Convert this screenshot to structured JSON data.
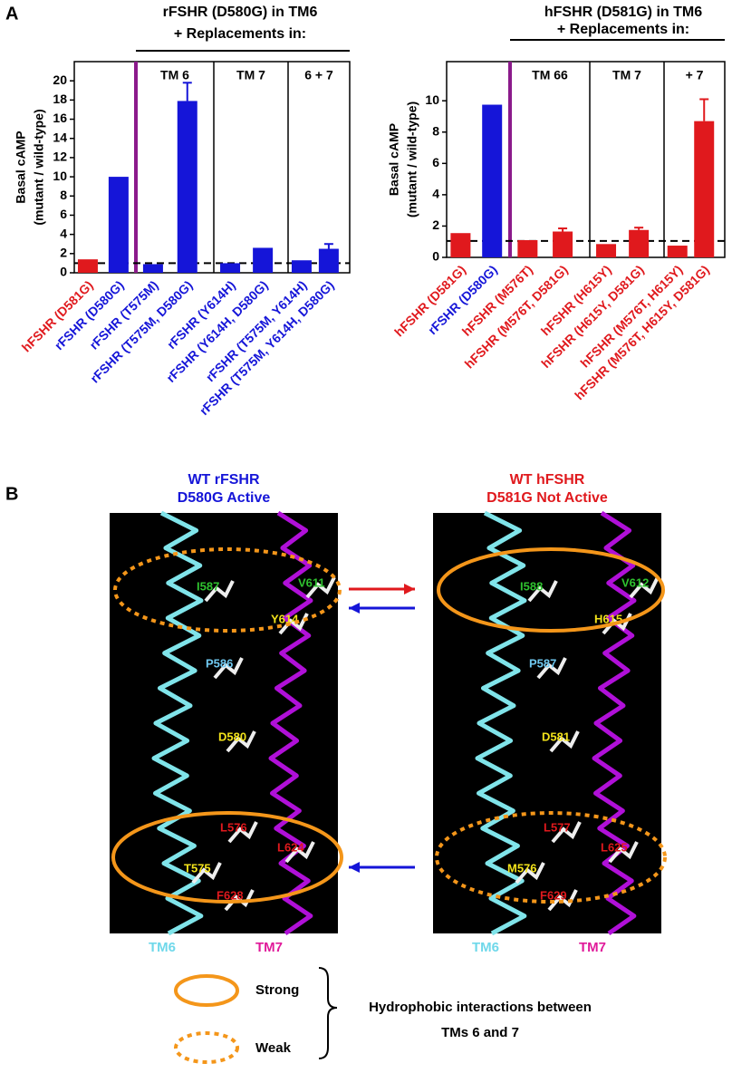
{
  "panel_labels": [
    "A",
    "B"
  ],
  "chart_data": [
    {
      "type": "bar",
      "title": "rFSHR (D580G) in TM6",
      "subtitle": "+ Replacements in:",
      "ylabel": [
        "Basal cAMP",
        "(mutant / wild-type)"
      ],
      "sections": [
        "TM 6",
        "TM 7",
        "6 + 7"
      ],
      "categories": [
        "hFSHR (D581G)",
        "rFSHR (D580G)",
        "rFSHR (T575M)",
        "rFSHR (T575M, D580G)",
        "rFSHR (Y614H)",
        "rFSHR (Y614H, D580G)",
        "rFSHR (T575M, Y614H)",
        "rFSHR (T575M, Y614H, D580G)"
      ],
      "values": [
        1.4,
        10.0,
        0.9,
        17.9,
        1.0,
        2.6,
        1.3,
        2.5
      ],
      "errors": [
        null,
        null,
        null,
        1.9,
        null,
        null,
        null,
        0.5
      ],
      "colors": [
        "#e0191d",
        "#1515d8",
        "#1515d8",
        "#1515d8",
        "#1515d8",
        "#1515d8",
        "#1515d8",
        "#1515d8"
      ],
      "reference_line": 1,
      "ylim": [
        0,
        22
      ],
      "yticks": [
        0,
        2,
        4,
        6,
        8,
        10,
        12,
        14,
        16,
        18,
        20
      ]
    },
    {
      "type": "bar",
      "title": "hFSHR (D581G)  in TM6",
      "subtitle": "+ Replacements in:",
      "ylabel": [
        "Basal cAMP",
        "(mutant / wild-type)"
      ],
      "sections": [
        "TM 66",
        "TM 7",
        "+ 7"
      ],
      "categories": [
        "hFSHR (D581G)",
        "rFSHR (D580G)",
        "hFSHR (M576T)",
        "hFSHR (M576T, D581G)",
        "hFSHR (H615Y)",
        "hFSHR (H615Y, D581G)",
        "hFSHR (M576T, H615Y)",
        "hFSHR (M576T, H615Y, D581G)"
      ],
      "values": [
        1.55,
        9.75,
        1.1,
        1.65,
        0.85,
        1.75,
        0.75,
        8.7
      ],
      "errors": [
        null,
        null,
        null,
        0.2,
        null,
        0.15,
        null,
        1.4
      ],
      "colors": [
        "#e0191d",
        "#1515d8",
        "#e0191d",
        "#e0191d",
        "#e0191d",
        "#e0191d",
        "#e0191d",
        "#e0191d"
      ],
      "reference_line": 1.05,
      "ylim": [
        0,
        12.5
      ],
      "yticks": [
        0,
        2,
        4,
        6,
        8,
        10
      ]
    }
  ],
  "panel_b": {
    "structures": [
      {
        "title": [
          "WT rFSHR",
          "D580G Active"
        ],
        "title_color": "#1515d8",
        "residues": [
          {
            "label": "I587",
            "color": "#2fc22f"
          },
          {
            "label": "V611",
            "color": "#2fc22f"
          },
          {
            "label": "Y614",
            "color": "#f2e21a"
          },
          {
            "label": "P586",
            "color": "#6fc8f0"
          },
          {
            "label": "D580",
            "color": "#f2e21a"
          },
          {
            "label": "L576",
            "color": "#e0191d"
          },
          {
            "label": "L624",
            "color": "#e0191d"
          },
          {
            "label": "T575",
            "color": "#f2e21a"
          },
          {
            "label": "F628",
            "color": "#e0191d"
          }
        ],
        "helices": [
          "TM6",
          "TM7"
        ]
      },
      {
        "title": [
          "WT hFSHR",
          "D581G Not Active"
        ],
        "title_color": "#e0191d",
        "residues": [
          {
            "label": "I588",
            "color": "#2fc22f"
          },
          {
            "label": "V612",
            "color": "#2fc22f"
          },
          {
            "label": "H615",
            "color": "#f2e21a"
          },
          {
            "label": "P587",
            "color": "#6fc8f0"
          },
          {
            "label": "D581",
            "color": "#f2e21a"
          },
          {
            "label": "L577",
            "color": "#e0191d"
          },
          {
            "label": "L625",
            "color": "#e0191d"
          },
          {
            "label": "M576",
            "color": "#f2e21a"
          },
          {
            "label": "F629",
            "color": "#e0191d"
          }
        ],
        "helices": [
          "TM6",
          "TM7"
        ]
      }
    ],
    "legend": {
      "strong": "Strong",
      "weak": "Weak",
      "description": [
        "Hydrophobic interactions between",
        "TMs 6 and 7"
      ]
    }
  }
}
